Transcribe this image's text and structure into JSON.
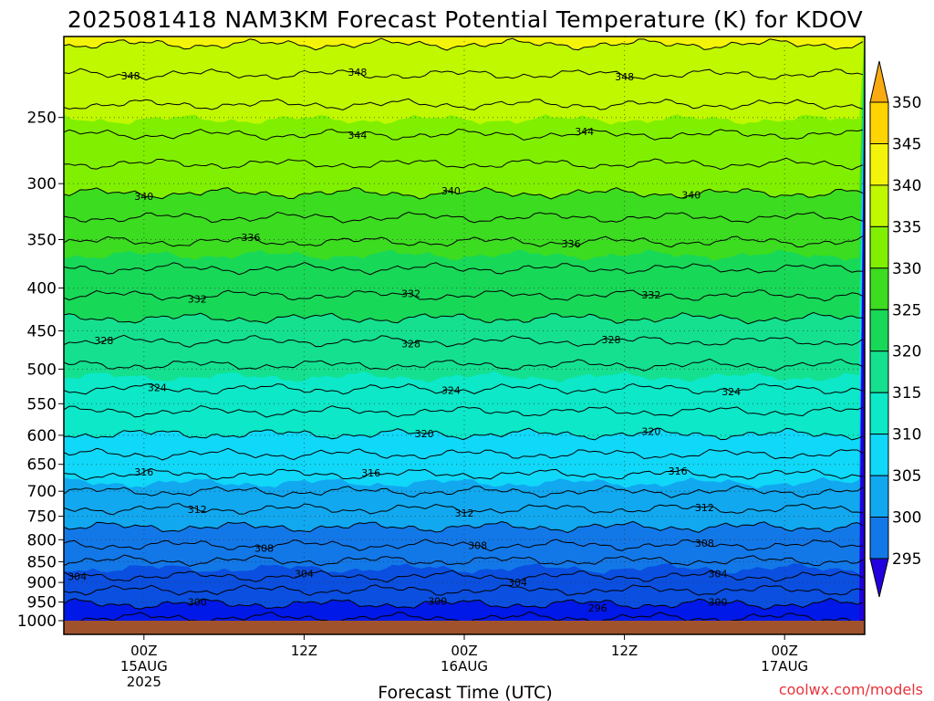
{
  "chart_data": {
    "type": "heatmap",
    "title": "2025081418 NAM3KM Forecast Potential Temperature (K) for KDOV",
    "xlabel": "Forecast Time (UTC)",
    "ylabel": "",
    "credit": "coolwx.com/models",
    "x_ticks": [
      {
        "line1": "00Z",
        "line2": "15AUG",
        "line3": "2025",
        "hours": 6
      },
      {
        "line1": "12Z",
        "line2": "",
        "line3": "",
        "hours": 18
      },
      {
        "line1": "00Z",
        "line2": "16AUG",
        "line3": "",
        "hours": 30
      },
      {
        "line1": "12Z",
        "line2": "",
        "line3": "",
        "hours": 42
      },
      {
        "line1": "00Z",
        "line2": "17AUG",
        "line3": "",
        "hours": 54
      }
    ],
    "xlim_hours": [
      0,
      60
    ],
    "y_ticks": [
      "250",
      "300",
      "350",
      "400",
      "450",
      "500",
      "550",
      "600",
      "650",
      "700",
      "750",
      "800",
      "850",
      "900",
      "950",
      "1000"
    ],
    "ylim_hPa": [
      1000,
      200
    ],
    "y_scale": "log",
    "colorbar": {
      "labels": [
        "350",
        "345",
        "340",
        "335",
        "330",
        "325",
        "320",
        "315",
        "310",
        "305",
        "300",
        "295"
      ],
      "levels": [
        295,
        300,
        305,
        310,
        315,
        320,
        325,
        330,
        335,
        340,
        345,
        350
      ],
      "colors": [
        "#2200dd",
        "#0018e8",
        "#0a4fe0",
        "#1278e8",
        "#11a8f0",
        "#10d8f8",
        "#0ce8c8",
        "#14e090",
        "#18d858",
        "#3cdc20",
        "#80f000",
        "#c0f800",
        "#f4f40a",
        "#ffd400",
        "#f8aa10"
      ]
    },
    "contours": [
      {
        "label": "348",
        "value": 348,
        "pressure_hPa": 222
      },
      {
        "label": "344",
        "value": 344,
        "pressure_hPa": 262
      },
      {
        "label": "340",
        "value": 340,
        "pressure_hPa": 308
      },
      {
        "label": "336",
        "value": 336,
        "pressure_hPa": 352
      },
      {
        "label": "332",
        "value": 332,
        "pressure_hPa": 408
      },
      {
        "label": "328",
        "value": 328,
        "pressure_hPa": 463
      },
      {
        "label": "324",
        "value": 324,
        "pressure_hPa": 528
      },
      {
        "label": "320",
        "value": 320,
        "pressure_hPa": 598
      },
      {
        "label": "316",
        "value": 316,
        "pressure_hPa": 668
      },
      {
        "label": "312",
        "value": 312,
        "pressure_hPa": 735
      },
      {
        "label": "308",
        "value": 308,
        "pressure_hPa": 812
      },
      {
        "label": "304",
        "value": 304,
        "pressure_hPa": 885
      },
      {
        "label": "300",
        "value": 300,
        "pressure_hPa": 955
      },
      {
        "label": "296",
        "value": 296,
        "pressure_hPa": 965
      }
    ],
    "contour_label_hours": {
      "348": [
        5,
        22,
        42
      ],
      "344": [
        22,
        39
      ],
      "340": [
        6,
        29,
        47
      ],
      "336": [
        14,
        38
      ],
      "332": [
        10,
        26,
        44
      ],
      "328": [
        3,
        26,
        41
      ],
      "324": [
        7,
        29,
        50
      ],
      "320": [
        27,
        44
      ],
      "316": [
        6,
        23,
        46
      ],
      "312": [
        10,
        30,
        48
      ],
      "308": [
        15,
        31,
        48
      ],
      "304": [
        1,
        18,
        34,
        49
      ],
      "300": [
        10,
        28,
        49
      ],
      "296": [
        40
      ]
    },
    "ground_color": "#a0522d",
    "grid": true
  }
}
